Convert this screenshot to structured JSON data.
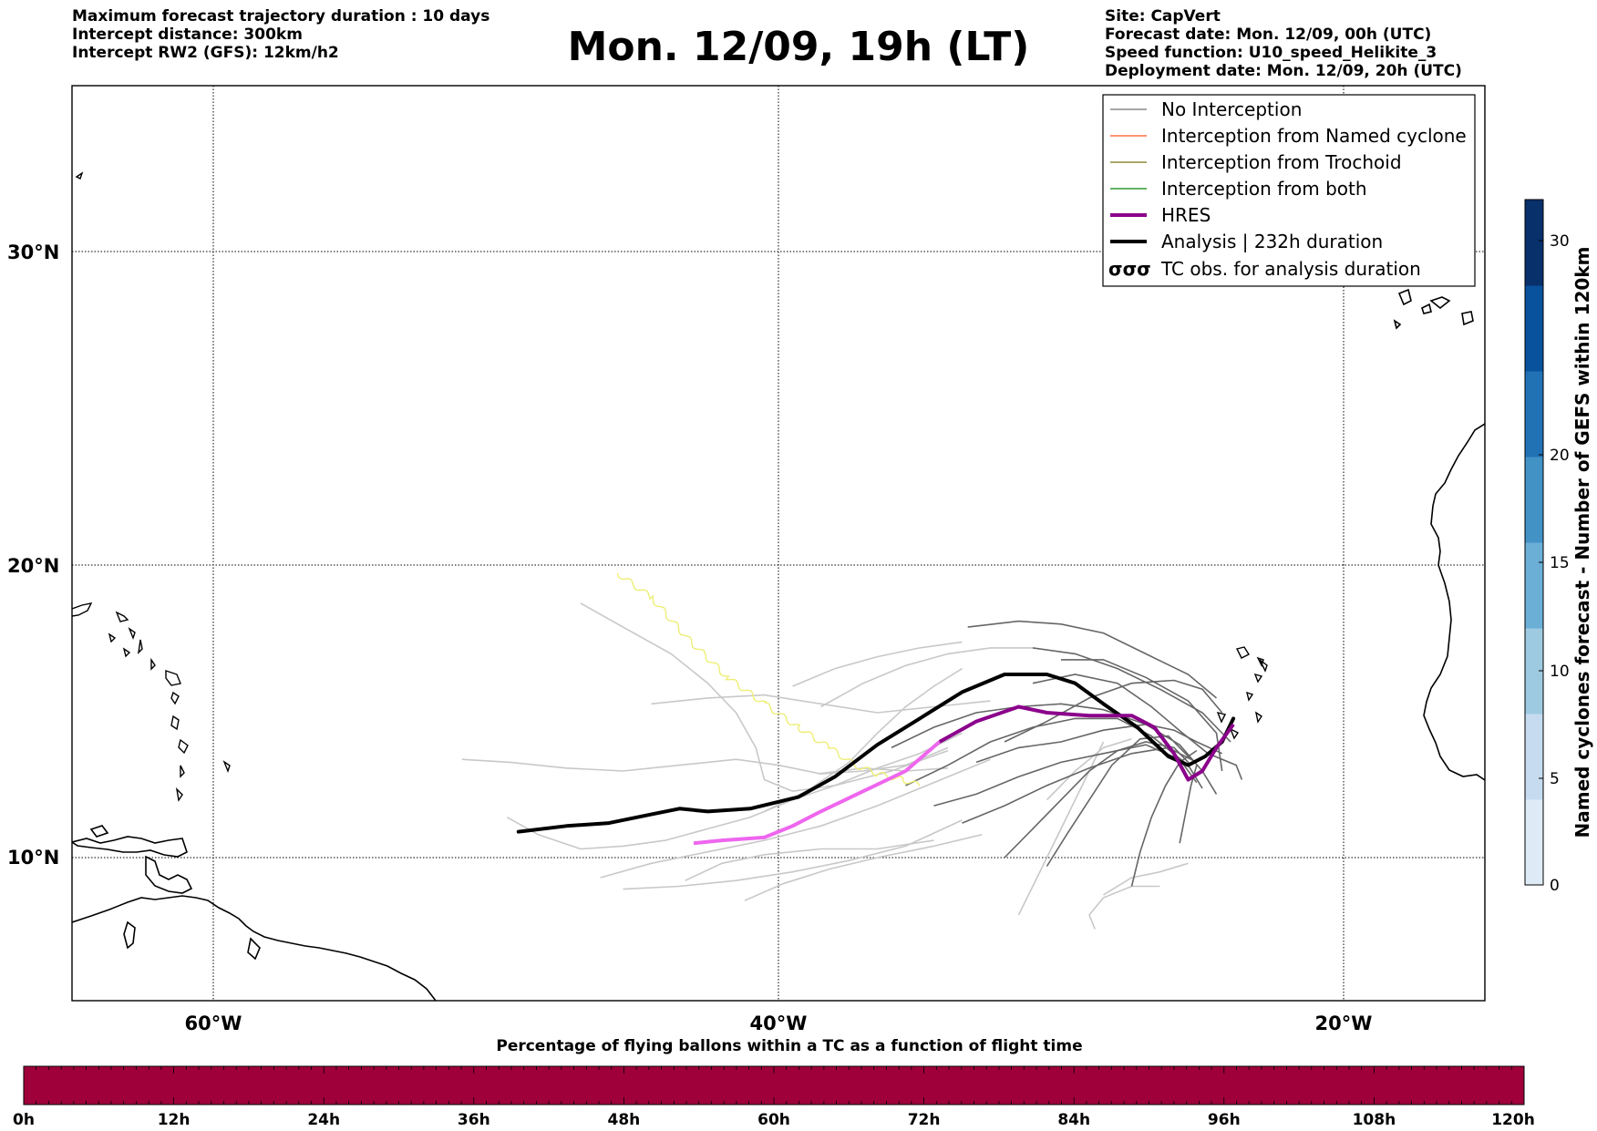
{
  "header_left": [
    "Maximum forecast trajectory duration : 10 days",
    "Intercept distance: 300km",
    "Intercept RW2 (GFS):  12km/h2"
  ],
  "title": "Mon. 12/09, 19h (LT)",
  "header_right": [
    "Site: CapVert",
    "Forecast date: Mon. 12/09, 00h (UTC)",
    "Speed function: U10_speed_Helikite_3",
    "Deployment date: Mon. 12/09, 20h (UTC)"
  ],
  "map": {
    "lon_labels": [
      "60°W",
      "40°W",
      "20°W"
    ],
    "lat_labels": [
      "30°N",
      "20°N",
      "10°N"
    ]
  },
  "legend": [
    {
      "label": "No Interception",
      "color": "#888888",
      "width": 1.2
    },
    {
      "label": "Interception from Named cyclone",
      "color": "#ff7043",
      "width": 1.2
    },
    {
      "label": "Interception from Trochoid",
      "color": "#8d8a3a",
      "width": 1.2
    },
    {
      "label": "Interception from both",
      "color": "#2e9b2e",
      "width": 1.2
    },
    {
      "label": "HRES",
      "color": "#8b008b",
      "width": 4
    },
    {
      "label": "Analysis | 232h duration",
      "color": "#000000",
      "width": 4
    },
    {
      "label": "TC obs. for analysis duration",
      "symbol": "σσσ"
    }
  ],
  "colorbar_right": {
    "label": "Named cyclones forecast - Number of GEFS within 120km",
    "ticks": [
      "0",
      "5",
      "10",
      "15",
      "20",
      "30"
    ],
    "colors": [
      "#deebf7",
      "#c6dbef",
      "#9ecae1",
      "#6baed6",
      "#4292c6",
      "#2171b5",
      "#08519c",
      "#08306b"
    ]
  },
  "colorbar_bottom": {
    "title": "Percentage of flying ballons within a TC as a function of flight time",
    "ticks": [
      "0h",
      "12h",
      "24h",
      "36h",
      "48h",
      "60h",
      "72h",
      "84h",
      "96h",
      "108h",
      "120h"
    ],
    "color": "#a0003a"
  },
  "tracks": {
    "analysis": [
      [
        -49.2,
        10.9
      ],
      [
        -47.5,
        11.1
      ],
      [
        -46,
        11.2
      ],
      [
        -44.5,
        11.5
      ],
      [
        -43.5,
        11.7
      ],
      [
        -42.5,
        11.6
      ],
      [
        -41,
        11.7
      ],
      [
        -39.3,
        12.1
      ],
      [
        -38,
        12.8
      ],
      [
        -36.5,
        13.9
      ],
      [
        -35,
        14.8
      ],
      [
        -33.5,
        15.7
      ],
      [
        -32,
        16.3
      ],
      [
        -30.5,
        16.3
      ],
      [
        -29.5,
        16.0
      ],
      [
        -28.5,
        15.3
      ],
      [
        -27.3,
        14.5
      ],
      [
        -26.2,
        13.5
      ],
      [
        -25.5,
        13.2
      ],
      [
        -24.9,
        13.5
      ],
      [
        -24.3,
        14.0
      ],
      [
        -23.9,
        14.8
      ]
    ],
    "hres_light": [
      [
        -43,
        10.5
      ],
      [
        -42,
        10.6
      ],
      [
        -40.5,
        10.7
      ],
      [
        -39.5,
        11.1
      ],
      [
        -38.5,
        11.6
      ],
      [
        -37,
        12.3
      ],
      [
        -35.5,
        13.0
      ],
      [
        -34.3,
        14.0
      ]
    ],
    "hres_dark": [
      [
        -34.3,
        14.0
      ],
      [
        -33,
        14.7
      ],
      [
        -31.5,
        15.2
      ],
      [
        -30.5,
        15.0
      ],
      [
        -29,
        14.9
      ],
      [
        -27.5,
        14.9
      ],
      [
        -26.7,
        14.5
      ],
      [
        -26,
        13.6
      ],
      [
        -25.5,
        12.7
      ],
      [
        -25,
        13.0
      ],
      [
        -24.5,
        13.8
      ],
      [
        -23.9,
        14.6
      ]
    ],
    "trochoid": [
      [
        -45.7,
        19.7
      ],
      [
        -44.5,
        18.9
      ],
      [
        -43.2,
        17.5
      ],
      [
        -41.8,
        16.2
      ],
      [
        -40.5,
        15.3
      ],
      [
        -39.3,
        14.5
      ],
      [
        -38.2,
        13.8
      ],
      [
        -37.3,
        13.2
      ],
      [
        -36.5,
        12.9
      ],
      [
        -35.6,
        12.7
      ],
      [
        -35,
        12.5
      ]
    ],
    "gray_light": [
      [
        [
          -49.6,
          11.4
        ],
        [
          -48.5,
          10.8
        ],
        [
          -47,
          10.3
        ],
        [
          -45.5,
          10.4
        ],
        [
          -44,
          10.6
        ],
        [
          -42.5,
          11.0
        ],
        [
          -41,
          11.4
        ],
        [
          -39.5,
          12.0
        ],
        [
          -38,
          12.5
        ],
        [
          -36.5,
          13.1
        ],
        [
          -35,
          13.6
        ],
        [
          -33.5,
          14.3
        ]
      ],
      [
        [
          -51.2,
          13.4
        ],
        [
          -49.5,
          13.3
        ],
        [
          -47.5,
          13.1
        ],
        [
          -45.5,
          13.0
        ],
        [
          -43.5,
          13.2
        ],
        [
          -41.5,
          13.4
        ],
        [
          -40,
          13.2
        ],
        [
          -38.5,
          12.9
        ],
        [
          -37,
          13.0
        ],
        [
          -35.5,
          13.2
        ],
        [
          -34,
          13.8
        ]
      ],
      [
        [
          -47,
          18.7
        ],
        [
          -45.5,
          17.9
        ],
        [
          -43.8,
          17.0
        ],
        [
          -42.5,
          16.0
        ],
        [
          -41.5,
          15.0
        ],
        [
          -40.8,
          13.8
        ],
        [
          -40.5,
          12.7
        ],
        [
          -39.5,
          12.3
        ],
        [
          -38,
          12.5
        ],
        [
          -36,
          13.0
        ],
        [
          -34,
          13.7
        ]
      ],
      [
        [
          -44.5,
          15.3
        ],
        [
          -42.5,
          15.5
        ],
        [
          -40.5,
          15.6
        ],
        [
          -38.5,
          15.3
        ],
        [
          -36.5,
          15.0
        ],
        [
          -34.5,
          15.2
        ],
        [
          -32.5,
          15.4
        ]
      ],
      [
        [
          -46.3,
          9.3
        ],
        [
          -44.5,
          9.8
        ],
        [
          -42.5,
          10.2
        ],
        [
          -40.5,
          10.6
        ],
        [
          -38.5,
          11.1
        ],
        [
          -36.5,
          11.8
        ],
        [
          -34.5,
          12.6
        ],
        [
          -32.5,
          13.4
        ]
      ],
      [
        [
          -45.5,
          8.9
        ],
        [
          -43.5,
          9.0
        ],
        [
          -41.5,
          9.2
        ],
        [
          -39.5,
          9.5
        ],
        [
          -37.5,
          9.9
        ],
        [
          -35.5,
          10.4
        ],
        [
          -33.5,
          11.3
        ]
      ],
      [
        [
          -43.3,
          9.2
        ],
        [
          -42,
          9.8
        ],
        [
          -40.5,
          10.1
        ],
        [
          -38.5,
          10.3
        ],
        [
          -36.5,
          10.3
        ],
        [
          -34.5,
          10.6
        ]
      ],
      [
        [
          -41.2,
          8.5
        ],
        [
          -39.8,
          9.1
        ],
        [
          -38.2,
          9.6
        ],
        [
          -36.5,
          10.0
        ],
        [
          -34.5,
          10.4
        ],
        [
          -32.8,
          10.8
        ]
      ],
      [
        [
          -40.5,
          11.6
        ],
        [
          -39,
          12.3
        ],
        [
          -37.5,
          13.3
        ],
        [
          -36.5,
          14.3
        ],
        [
          -35.5,
          15.2
        ],
        [
          -34.5,
          15.9
        ],
        [
          -33.5,
          16.5
        ]
      ],
      [
        [
          -38.5,
          15.2
        ],
        [
          -37,
          16.0
        ],
        [
          -35.5,
          16.6
        ],
        [
          -34,
          17.0
        ],
        [
          -32.5,
          17.2
        ],
        [
          -31,
          17.2
        ]
      ],
      [
        [
          -39.5,
          15.9
        ],
        [
          -38,
          16.5
        ],
        [
          -36.5,
          16.9
        ],
        [
          -35,
          17.2
        ],
        [
          -33.5,
          17.4
        ]
      ],
      [
        [
          -38.6,
          12.9
        ],
        [
          -37,
          13.1
        ],
        [
          -35.5,
          13.0
        ],
        [
          -34,
          13.1
        ]
      ],
      [
        [
          -31.5,
          8.0
        ],
        [
          -31,
          9.0
        ],
        [
          -30.5,
          10.0
        ],
        [
          -30,
          11.0
        ],
        [
          -29.5,
          12.0
        ],
        [
          -29,
          13.0
        ],
        [
          -28.5,
          14.0
        ]
      ],
      [
        [
          -26.5,
          9.0
        ],
        [
          -27.5,
          9.0
        ],
        [
          -28.5,
          8.6
        ],
        [
          -29,
          8.0
        ],
        [
          -28.8,
          7.5
        ]
      ],
      [
        [
          -28.5,
          8.7
        ],
        [
          -27.5,
          9.3
        ],
        [
          -26.5,
          9.5
        ],
        [
          -25.5,
          9.8
        ]
      ],
      [
        [
          -30.5,
          12.0
        ],
        [
          -29.5,
          13.0
        ],
        [
          -28.5,
          13.8
        ],
        [
          -27.5,
          14.1
        ]
      ]
    ],
    "gray_dark": [
      [
        [
          -33.3,
          17.9
        ],
        [
          -31.5,
          18.1
        ],
        [
          -30,
          18.0
        ],
        [
          -28.5,
          17.7
        ],
        [
          -27,
          17.0
        ],
        [
          -25.5,
          16.3
        ],
        [
          -24.5,
          15.5
        ]
      ],
      [
        [
          -31,
          17.2
        ],
        [
          -29.5,
          17.0
        ],
        [
          -28,
          16.5
        ],
        [
          -26.5,
          15.8
        ],
        [
          -25,
          15.0
        ],
        [
          -24,
          14.0
        ]
      ],
      [
        [
          -30,
          16.8
        ],
        [
          -28.5,
          16.8
        ],
        [
          -27,
          16.2
        ],
        [
          -25.5,
          15.4
        ],
        [
          -24.5,
          14.3
        ],
        [
          -24.3,
          13.0
        ]
      ],
      [
        [
          -36,
          13.8
        ],
        [
          -34.5,
          14.5
        ],
        [
          -33,
          15.0
        ],
        [
          -31.5,
          15.2
        ],
        [
          -30,
          15.3
        ],
        [
          -28.5,
          15.1
        ],
        [
          -27,
          14.6
        ],
        [
          -25.8,
          13.9
        ],
        [
          -25,
          13.0
        ],
        [
          -24.5,
          12.2
        ]
      ],
      [
        [
          -35.5,
          12.5
        ],
        [
          -34,
          13.2
        ],
        [
          -32.5,
          14.0
        ],
        [
          -31,
          14.5
        ],
        [
          -29.5,
          14.8
        ],
        [
          -28,
          14.8
        ],
        [
          -26.8,
          14.2
        ],
        [
          -25.5,
          13.2
        ],
        [
          -25,
          12.4
        ]
      ],
      [
        [
          -34.5,
          11.8
        ],
        [
          -33,
          12.2
        ],
        [
          -31.5,
          12.8
        ],
        [
          -30,
          13.3
        ],
        [
          -28.5,
          13.6
        ],
        [
          -27,
          13.9
        ],
        [
          -25.8,
          13.4
        ],
        [
          -25.2,
          12.6
        ]
      ],
      [
        [
          -33.5,
          11.2
        ],
        [
          -32,
          11.8
        ],
        [
          -30.5,
          12.5
        ],
        [
          -29,
          13.1
        ],
        [
          -27.5,
          13.6
        ],
        [
          -26.2,
          13.8
        ],
        [
          -25.2,
          13.3
        ]
      ],
      [
        [
          -32,
          10.0
        ],
        [
          -31,
          11.0
        ],
        [
          -30,
          12.0
        ],
        [
          -29,
          13.0
        ],
        [
          -28,
          13.7
        ],
        [
          -27,
          14.0
        ],
        [
          -26,
          13.8
        ],
        [
          -25.4,
          13.2
        ]
      ],
      [
        [
          -30.5,
          9.7
        ],
        [
          -29.8,
          10.8
        ],
        [
          -29,
          12.0
        ],
        [
          -28.2,
          13.2
        ],
        [
          -27.2,
          14.1
        ],
        [
          -26.2,
          14.2
        ],
        [
          -25.4,
          13.4
        ]
      ],
      [
        [
          -27.5,
          9.0
        ],
        [
          -27.2,
          10.2
        ],
        [
          -26.8,
          11.4
        ],
        [
          -26.3,
          12.5
        ],
        [
          -25.8,
          13.3
        ],
        [
          -25.2,
          13.7
        ]
      ],
      [
        [
          -25.8,
          10.5
        ],
        [
          -25.6,
          11.5
        ],
        [
          -25.4,
          12.5
        ],
        [
          -25.2,
          13.2
        ]
      ],
      [
        [
          -32,
          14.0
        ],
        [
          -30.5,
          14.7
        ],
        [
          -29,
          15.5
        ],
        [
          -27.5,
          16.0
        ],
        [
          -26,
          16.1
        ],
        [
          -25,
          15.8
        ],
        [
          -24.3,
          15.0
        ]
      ],
      [
        [
          -31,
          16.0
        ],
        [
          -29.5,
          16.3
        ],
        [
          -28,
          16.0
        ],
        [
          -26.8,
          15.2
        ],
        [
          -25.7,
          14.3
        ],
        [
          -24.8,
          13.6
        ],
        [
          -23.8,
          13.2
        ],
        [
          -23.6,
          12.7
        ]
      ],
      [
        [
          -33,
          13.3
        ],
        [
          -31.5,
          13.8
        ],
        [
          -30,
          14.0
        ],
        [
          -28.5,
          14.4
        ],
        [
          -27,
          14.6
        ],
        [
          -26,
          14.4
        ],
        [
          -25.2,
          14.0
        ],
        [
          -24.3,
          13.6
        ]
      ]
    ]
  }
}
